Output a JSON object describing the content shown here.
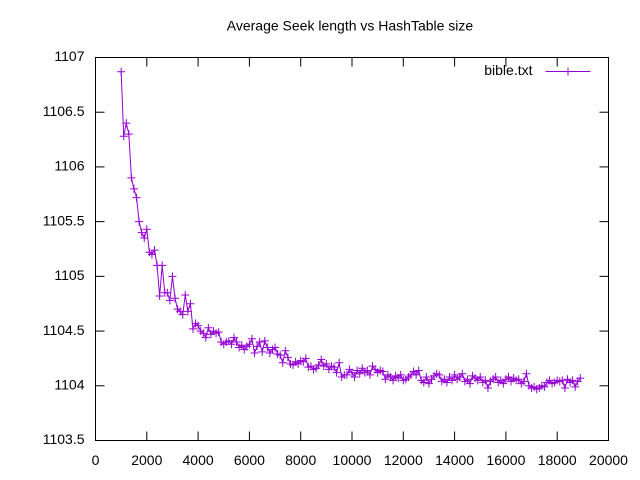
{
  "chart_data": {
    "type": "line",
    "title": "Average Seek length vs HashTable size",
    "x": [
      1000,
      1100,
      1200,
      1300,
      1400,
      1500,
      1600,
      1700,
      1800,
      1900,
      2000,
      2100,
      2200,
      2300,
      2400,
      2500,
      2600,
      2700,
      2800,
      2900,
      3000,
      3100,
      3200,
      3300,
      3400,
      3500,
      3600,
      3700,
      3800,
      3900,
      4000,
      4100,
      4200,
      4300,
      4400,
      4500,
      4600,
      4700,
      4800,
      4900,
      5000,
      5100,
      5200,
      5300,
      5400,
      5500,
      5600,
      5700,
      5800,
      5900,
      6000,
      6100,
      6200,
      6300,
      6400,
      6500,
      6600,
      6700,
      6800,
      6900,
      7000,
      7100,
      7200,
      7300,
      7400,
      7500,
      7600,
      7700,
      7800,
      7900,
      8000,
      8100,
      8200,
      8300,
      8400,
      8500,
      8600,
      8700,
      8800,
      8900,
      9000,
      9100,
      9200,
      9300,
      9400,
      9500,
      9600,
      9700,
      9800,
      9900,
      10000,
      10100,
      10200,
      10300,
      10400,
      10500,
      10600,
      10700,
      10800,
      10900,
      11000,
      11100,
      11200,
      11300,
      11400,
      11500,
      11600,
      11700,
      11800,
      11900,
      12000,
      12100,
      12200,
      12300,
      12400,
      12500,
      12600,
      12700,
      12800,
      12900,
      13000,
      13100,
      13200,
      13300,
      13400,
      13500,
      13600,
      13700,
      13800,
      13900,
      14000,
      14100,
      14200,
      14300,
      14400,
      14500,
      14600,
      14700,
      14800,
      14900,
      15000,
      15100,
      15200,
      15300,
      15400,
      15500,
      15600,
      15700,
      15800,
      15900,
      16000,
      16100,
      16200,
      16300,
      16400,
      16500,
      16600,
      16700,
      16800,
      16900,
      17000,
      17100,
      17200,
      17300,
      17400,
      17500,
      17600,
      17700,
      17800,
      17900,
      18000,
      18100,
      18200,
      18300,
      18400,
      18500,
      18600,
      18700,
      18800,
      18900
    ],
    "series": [
      {
        "name": "bible.txt",
        "color": "#9400d3",
        "values": [
          1106.87,
          1106.28,
          1106.4,
          1106.3,
          1105.9,
          1105.8,
          1105.72,
          1105.5,
          1105.4,
          1105.35,
          1105.43,
          1105.22,
          1105.2,
          1105.24,
          1105.1,
          1104.82,
          1105.1,
          1104.85,
          1104.85,
          1104.78,
          1105.0,
          1104.8,
          1104.7,
          1104.68,
          1104.65,
          1104.83,
          1104.68,
          1104.75,
          1104.52,
          1104.57,
          1104.55,
          1104.5,
          1104.48,
          1104.44,
          1104.53,
          1104.47,
          1104.5,
          1104.48,
          1104.49,
          1104.4,
          1104.38,
          1104.4,
          1104.41,
          1104.38,
          1104.44,
          1104.4,
          1104.35,
          1104.37,
          1104.33,
          1104.36,
          1104.38,
          1104.43,
          1104.3,
          1104.36,
          1104.4,
          1104.31,
          1104.41,
          1104.35,
          1104.3,
          1104.33,
          1104.35,
          1104.29,
          1104.28,
          1104.21,
          1104.32,
          1104.26,
          1104.2,
          1104.19,
          1104.22,
          1104.2,
          1104.23,
          1104.22,
          1104.25,
          1104.17,
          1104.18,
          1104.15,
          1104.16,
          1104.19,
          1104.24,
          1104.18,
          1104.2,
          1104.15,
          1104.18,
          1104.17,
          1104.12,
          1104.21,
          1104.08,
          1104.1,
          1104.1,
          1104.15,
          1104.12,
          1104.08,
          1104.14,
          1104.11,
          1104.16,
          1104.12,
          1104.14,
          1104.1,
          1104.18,
          1104.15,
          1104.12,
          1104.14,
          1104.13,
          1104.06,
          1104.1,
          1104.08,
          1104.05,
          1104.09,
          1104.07,
          1104.1,
          1104.05,
          1104.06,
          1104.08,
          1104.1,
          1104.13,
          1104.1,
          1104.14,
          1104.05,
          1104.03,
          1104.08,
          1104.02,
          1104.06,
          1104.09,
          1104.11,
          1104.1,
          1104.04,
          1104.06,
          1104.03,
          1104.08,
          1104.05,
          1104.1,
          1104.06,
          1104.08,
          1104.11,
          1104.04,
          1104.06,
          1104.02,
          1104.09,
          1104.07,
          1104.05,
          1104.08,
          1104.03,
          1104.05,
          1103.98,
          1104.04,
          1104.06,
          1104.08,
          1104.03,
          1104.05,
          1104.02,
          1104.06,
          1104.08,
          1104.04,
          1104.07,
          1104.05,
          1104.06,
          1104.02,
          1104.04,
          1104.11,
          1104.0,
          1103.98,
          1103.99,
          1103.97,
          1103.98,
          1104.0,
          1103.99,
          1104.03,
          1104.05,
          1104.02,
          1104.03,
          1104.05,
          1104.04,
          1104.05,
          1103.98,
          1104.06,
          1104.03,
          1104.05,
          1103.99,
          1104.04,
          1104.07
        ]
      }
    ],
    "xlim": [
      0,
      20000
    ],
    "xticks": [
      0,
      2000,
      4000,
      6000,
      8000,
      10000,
      12000,
      14000,
      16000,
      18000,
      20000
    ],
    "ylim": [
      1103.5,
      1107
    ],
    "yticks": [
      1103.5,
      1104,
      1104.5,
      1105,
      1105.5,
      1106,
      1106.5,
      1107
    ],
    "legend": "top-right"
  }
}
